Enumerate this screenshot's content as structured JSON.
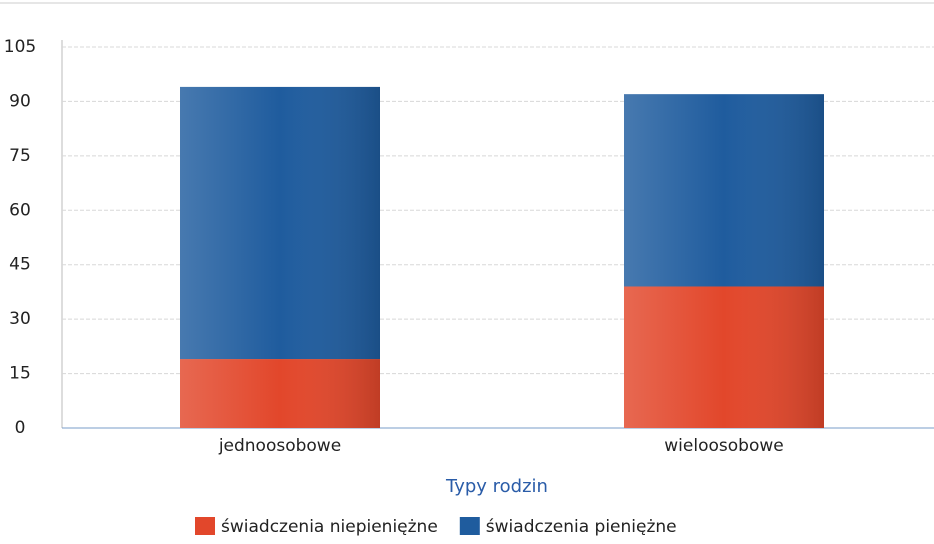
{
  "chart_data": {
    "type": "stacked_bar",
    "x_label": "Typy rodzin",
    "categories": [
      "jednoosobowe",
      "wieloosobowe"
    ],
    "series": [
      {
        "name": "świadczenia niepieniężne",
        "color": "#e2472b",
        "values": [
          19,
          39
        ]
      },
      {
        "name": "świadczenia pieniężne",
        "color": "#1f5c9e",
        "values": [
          75,
          53
        ]
      }
    ],
    "ylim": [
      0,
      105
    ],
    "yticks": [
      0,
      15,
      30,
      45,
      60,
      75,
      90,
      105
    ],
    "grid": true,
    "legend": "bottom"
  }
}
